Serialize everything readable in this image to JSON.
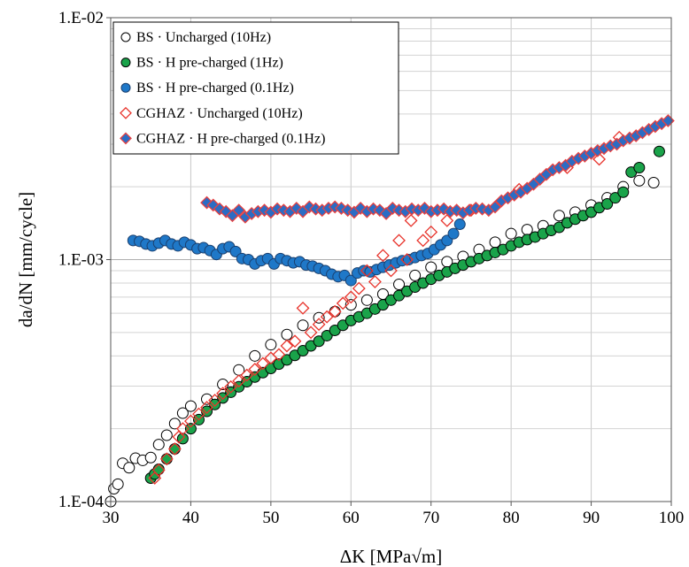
{
  "chart_data": {
    "type": "scatter",
    "xlabel": "ΔK [MPa√m]",
    "ylabel": "da/dN [mm/cycle]",
    "xlim": [
      30,
      100
    ],
    "ylim": [
      0.0001,
      0.01
    ],
    "y_scale": "log",
    "x_ticks": [
      "30",
      "40",
      "50",
      "60",
      "70",
      "80",
      "90",
      "100"
    ],
    "y_ticks": [
      "1.E-04",
      "1.E-03",
      "1.E-02"
    ],
    "grid": true,
    "legend_position": "top-left",
    "series": [
      {
        "name": "BS · Uncharged (10Hz)",
        "marker": "circle",
        "fill": "#ffffff",
        "stroke": "#000000",
        "x": [
          30.0,
          30.4,
          30.9,
          31.5,
          32.3,
          33.1,
          34.0,
          35.0,
          36.0,
          37.0,
          38.0,
          39.0,
          40.0,
          42.0,
          44.0,
          46.0,
          48.0,
          50.0,
          52.0,
          54.0,
          56.0,
          58.0,
          60.0,
          62.0,
          64.0,
          66.0,
          68.0,
          70.0,
          72.0,
          74.0,
          76.0,
          78.0,
          80.0,
          82.0,
          84.0,
          86.0,
          88.0,
          90.0,
          92.0,
          94.0,
          96.0,
          97.8
        ],
        "y": [
          0.0001,
          0.000113,
          0.000118,
          0.000144,
          0.000138,
          0.000151,
          0.000148,
          0.000152,
          0.000172,
          0.000188,
          0.00021,
          0.000232,
          0.000248,
          0.000265,
          0.000305,
          0.00035,
          0.0004,
          0.000445,
          0.00049,
          0.000535,
          0.000575,
          0.00061,
          0.00065,
          0.00068,
          0.00072,
          0.00079,
          0.00086,
          0.00093,
          0.00098,
          0.00103,
          0.0011,
          0.00118,
          0.00128,
          0.00133,
          0.00138,
          0.00152,
          0.00157,
          0.00168,
          0.0018,
          0.002,
          0.00212,
          0.00208
        ]
      },
      {
        "name": "BS · H pre-charged (1Hz)",
        "marker": "circle",
        "fill": "#1aa34a",
        "stroke": "#000000",
        "x": [
          35.0,
          35.5,
          36.0,
          37.0,
          38.0,
          39.0,
          40.0,
          41.0,
          42.0,
          43.0,
          44.0,
          45.0,
          46.0,
          47.0,
          48.0,
          49.0,
          50.0,
          51.0,
          52.0,
          53.0,
          54.0,
          55.0,
          56.0,
          57.0,
          58.0,
          59.0,
          60.0,
          61.0,
          62.0,
          63.0,
          64.0,
          65.0,
          66.0,
          67.0,
          68.0,
          69.0,
          70.0,
          71.0,
          72.0,
          73.0,
          74.0,
          75.0,
          76.0,
          77.0,
          78.0,
          79.0,
          80.0,
          81.0,
          82.0,
          83.0,
          84.0,
          85.0,
          86.0,
          87.0,
          88.0,
          89.0,
          90.0,
          91.0,
          92.0,
          93.0,
          94.0,
          95.0,
          96.0,
          98.5
        ],
        "y": [
          0.000125,
          0.00013,
          0.000136,
          0.00015,
          0.000165,
          0.000182,
          0.0002,
          0.000218,
          0.000236,
          0.000252,
          0.000268,
          0.000283,
          0.000298,
          0.000313,
          0.000327,
          0.000341,
          0.000355,
          0.00037,
          0.000385,
          0.000402,
          0.00042,
          0.00044,
          0.00046,
          0.000485,
          0.00051,
          0.000535,
          0.00056,
          0.00058,
          0.0006,
          0.000625,
          0.00065,
          0.00068,
          0.00071,
          0.00074,
          0.00077,
          0.0008,
          0.00083,
          0.00086,
          0.00089,
          0.00092,
          0.00095,
          0.00098,
          0.00101,
          0.00104,
          0.00107,
          0.0011,
          0.00114,
          0.00118,
          0.00121,
          0.00124,
          0.00128,
          0.00132,
          0.00136,
          0.00142,
          0.00147,
          0.00152,
          0.00157,
          0.00164,
          0.0017,
          0.0018,
          0.0019,
          0.0023,
          0.0024,
          0.0028
        ]
      },
      {
        "name": "BS · H pre-charged (0.1Hz)",
        "marker": "circle",
        "fill": "#1f78c8",
        "stroke": "#1a3f6e",
        "x": [
          32.8,
          33.6,
          34.4,
          35.2,
          36.0,
          36.8,
          37.6,
          38.4,
          39.2,
          40.0,
          40.8,
          41.6,
          42.4,
          43.2,
          44.0,
          44.8,
          45.6,
          46.4,
          47.2,
          48.0,
          48.8,
          49.6,
          50.4,
          51.2,
          52.0,
          52.8,
          53.6,
          54.4,
          55.2,
          56.0,
          56.8,
          57.6,
          58.4,
          59.2,
          60.0,
          60.8,
          61.6,
          62.4,
          63.2,
          64.0,
          64.8,
          65.6,
          66.4,
          67.2,
          68.0,
          68.8,
          69.6,
          70.4,
          71.2,
          72.0,
          72.8,
          73.6
        ],
        "y": [
          0.0012,
          0.00119,
          0.00116,
          0.00114,
          0.00117,
          0.0012,
          0.00116,
          0.00114,
          0.00118,
          0.00115,
          0.00111,
          0.00112,
          0.00109,
          0.00105,
          0.00111,
          0.00113,
          0.00108,
          0.00101,
          0.001,
          0.00096,
          0.00099,
          0.00101,
          0.00096,
          0.00101,
          0.00099,
          0.00097,
          0.00098,
          0.00095,
          0.00094,
          0.00092,
          0.0009,
          0.00087,
          0.00085,
          0.00086,
          0.00082,
          0.00088,
          0.0009,
          0.00089,
          0.00091,
          0.00093,
          0.00095,
          0.00097,
          0.00099,
          0.001,
          0.00102,
          0.00104,
          0.00106,
          0.0011,
          0.00115,
          0.0012,
          0.00128,
          0.0014
        ]
      },
      {
        "name": "CGHAZ · Uncharged (10Hz)",
        "marker": "diamond",
        "fill": "none",
        "stroke": "#e8342c",
        "x": [
          35.5,
          36.0,
          37.0,
          38.0,
          38.5,
          39.0,
          40.0,
          41.0,
          42.0,
          43.0,
          44.0,
          45.0,
          46.0,
          47.0,
          48.0,
          49.0,
          50.0,
          51.0,
          52.0,
          53.0,
          54.0,
          55.0,
          56.0,
          57.0,
          58.0,
          59.0,
          60.0,
          61.0,
          62.0,
          63.0,
          64.0,
          65.0,
          66.0,
          67.0,
          67.5,
          69.0,
          70.0,
          72.0,
          75.0,
          81.0,
          87.0,
          91.0,
          93.5
        ],
        "y": [
          0.000125,
          0.000135,
          0.00015,
          0.000165,
          0.000185,
          0.0002,
          0.000215,
          0.00023,
          0.000245,
          0.000262,
          0.00028,
          0.000298,
          0.000315,
          0.000333,
          0.000352,
          0.000372,
          0.000392,
          0.000405,
          0.00044,
          0.00046,
          0.00063,
          0.0005,
          0.00054,
          0.00058,
          0.00061,
          0.00066,
          0.0007,
          0.00076,
          0.0009,
          0.00081,
          0.00104,
          0.0009,
          0.0012,
          0.001,
          0.00145,
          0.0012,
          0.0013,
          0.00145,
          0.0016,
          0.00195,
          0.0024,
          0.0026,
          0.0032
        ]
      },
      {
        "name": "CGHAZ · H pre-charged (0.1Hz)",
        "marker": "diamond",
        "fill": "#2b6cc4",
        "stroke": "#e84040",
        "x": [
          42.0,
          42.8,
          43.6,
          44.4,
          45.2,
          46.0,
          46.8,
          47.6,
          48.4,
          49.2,
          50.0,
          50.8,
          51.6,
          52.4,
          53.2,
          54.0,
          54.8,
          55.6,
          56.4,
          57.2,
          58.0,
          58.8,
          59.6,
          60.4,
          61.2,
          62.0,
          62.8,
          63.6,
          64.4,
          65.2,
          66.0,
          66.8,
          67.6,
          68.4,
          69.2,
          70.0,
          70.8,
          71.6,
          72.4,
          73.2,
          74.0,
          74.8,
          75.6,
          76.4,
          77.2,
          78.0,
          78.8,
          79.6,
          80.4,
          81.2,
          82.0,
          82.8,
          83.6,
          84.4,
          85.2,
          86.0,
          86.8,
          87.6,
          88.4,
          89.2,
          90.0,
          90.8,
          91.6,
          92.4,
          93.2,
          94.0,
          94.8,
          95.6,
          96.4,
          97.2,
          98.0,
          98.8,
          99.6
        ],
        "y": [
          0.00172,
          0.00168,
          0.00162,
          0.00158,
          0.00152,
          0.0016,
          0.0015,
          0.00155,
          0.00158,
          0.0016,
          0.00157,
          0.00162,
          0.0016,
          0.00158,
          0.00163,
          0.00158,
          0.00165,
          0.00162,
          0.0016,
          0.00163,
          0.00165,
          0.00163,
          0.0016,
          0.00157,
          0.00163,
          0.00158,
          0.00162,
          0.0016,
          0.00155,
          0.00163,
          0.0016,
          0.00158,
          0.00162,
          0.0016,
          0.00163,
          0.00158,
          0.0016,
          0.00162,
          0.00158,
          0.0016,
          0.00156,
          0.0016,
          0.00163,
          0.00162,
          0.0016,
          0.00165,
          0.00175,
          0.0018,
          0.00185,
          0.0019,
          0.00197,
          0.00205,
          0.00215,
          0.00225,
          0.00235,
          0.0024,
          0.00245,
          0.00255,
          0.00262,
          0.00268,
          0.00275,
          0.00282,
          0.00288,
          0.00295,
          0.003,
          0.0031,
          0.00318,
          0.00325,
          0.00335,
          0.00345,
          0.00355,
          0.00365,
          0.00375
        ]
      }
    ]
  }
}
